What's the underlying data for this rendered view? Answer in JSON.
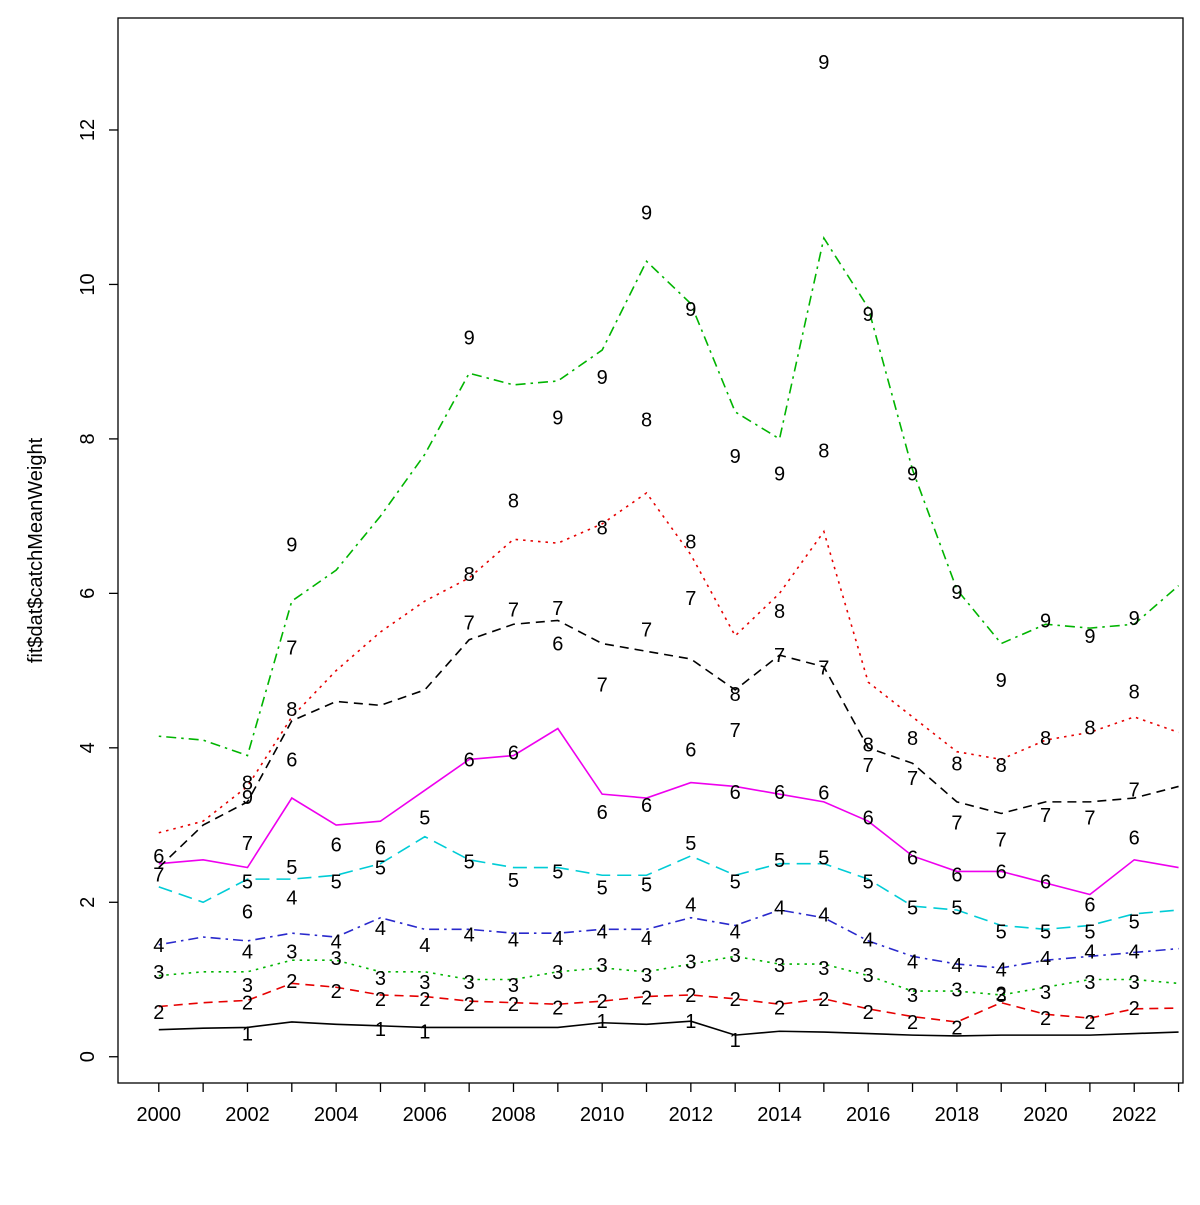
{
  "figure": {
    "background": "#ffffff"
  },
  "chart_data": {
    "type": "line",
    "title": "",
    "xlabel": "",
    "ylabel": "fit$dat$catchMeanWeight",
    "grid": false,
    "legend": "none (each series labeled by age digit plotted at observation points)",
    "xlim": [
      1999.08,
      2023.1
    ],
    "ylim": [
      -0.34,
      13.45
    ],
    "x": [
      2000,
      2001,
      2002,
      2003,
      2004,
      2005,
      2006,
      2007,
      2008,
      2009,
      2010,
      2011,
      2012,
      2013,
      2014,
      2015,
      2016,
      2017,
      2018,
      2019,
      2020,
      2021,
      2022,
      2023
    ],
    "x_tick_labels": [
      2000,
      2002,
      2004,
      2006,
      2008,
      2010,
      2012,
      2014,
      2016,
      2018,
      2020,
      2022
    ],
    "y_ticks": [
      0,
      2,
      4,
      6,
      8,
      10,
      12
    ],
    "series": [
      {
        "name": "age-1",
        "label": "1",
        "color": "#000000",
        "linetype": "solid",
        "line": [
          0.35,
          0.37,
          0.38,
          0.45,
          0.42,
          0.4,
          0.38,
          0.38,
          0.38,
          0.38,
          0.44,
          0.42,
          0.46,
          0.28,
          0.33,
          0.32,
          0.3,
          0.28,
          0.27,
          0.28,
          0.28,
          0.28,
          0.3,
          0.32
        ],
        "points": [
          null,
          null,
          0.3,
          null,
          null,
          0.36,
          0.33,
          null,
          null,
          null,
          0.46,
          null,
          0.46,
          0.22,
          null,
          null,
          null,
          null,
          null,
          null,
          null,
          null,
          null,
          null
        ]
      },
      {
        "name": "age-2",
        "label": "2",
        "color": "#e60000",
        "linetype": "dashed",
        "line": [
          0.65,
          0.7,
          0.73,
          0.95,
          0.9,
          0.8,
          0.78,
          0.72,
          0.7,
          0.68,
          0.72,
          0.78,
          0.8,
          0.75,
          0.68,
          0.75,
          0.62,
          0.52,
          0.45,
          0.7,
          0.55,
          0.5,
          0.62,
          0.63
        ],
        "points": [
          0.58,
          null,
          0.7,
          0.98,
          0.85,
          0.75,
          0.75,
          0.68,
          0.68,
          0.64,
          0.72,
          0.77,
          0.8,
          0.75,
          0.64,
          0.75,
          0.58,
          0.45,
          0.38,
          0.82,
          0.5,
          0.45,
          0.63,
          null
        ]
      },
      {
        "name": "age-3",
        "label": "3",
        "color": "#00b400",
        "linetype": "dotted",
        "line": [
          1.05,
          1.1,
          1.1,
          1.25,
          1.25,
          1.1,
          1.1,
          1.0,
          1.0,
          1.1,
          1.15,
          1.1,
          1.2,
          1.3,
          1.2,
          1.2,
          1.05,
          0.85,
          0.85,
          0.8,
          0.9,
          1.0,
          1.0,
          0.95
        ],
        "points": [
          1.1,
          null,
          0.93,
          1.36,
          1.28,
          1.02,
          0.97,
          0.97,
          0.93,
          1.1,
          1.19,
          1.06,
          1.23,
          1.32,
          1.19,
          1.15,
          1.06,
          0.8,
          0.87,
          0.8,
          0.84,
          0.97,
          0.97,
          null
        ]
      },
      {
        "name": "age-4",
        "label": "4",
        "color": "#2929cc",
        "linetype": "dashdot",
        "line": [
          1.45,
          1.55,
          1.5,
          1.6,
          1.55,
          1.8,
          1.65,
          1.65,
          1.6,
          1.6,
          1.65,
          1.65,
          1.8,
          1.7,
          1.9,
          1.8,
          1.5,
          1.3,
          1.2,
          1.15,
          1.25,
          1.3,
          1.35,
          1.4
        ],
        "points": [
          1.45,
          null,
          1.36,
          2.06,
          1.49,
          1.67,
          1.45,
          1.58,
          1.52,
          1.54,
          1.62,
          1.54,
          1.97,
          1.62,
          1.93,
          1.84,
          1.52,
          1.23,
          1.19,
          1.13,
          1.28,
          1.36,
          1.36,
          null
        ]
      },
      {
        "name": "age-5",
        "label": "5",
        "color": "#00ccd6",
        "linetype": "longdash",
        "line": [
          2.2,
          2.0,
          2.3,
          2.3,
          2.35,
          2.5,
          2.85,
          2.55,
          2.45,
          2.45,
          2.35,
          2.35,
          2.6,
          2.35,
          2.5,
          2.5,
          2.3,
          1.95,
          1.9,
          1.7,
          1.65,
          1.7,
          1.85,
          1.9
        ],
        "points": [
          null,
          null,
          2.27,
          2.46,
          2.27,
          2.45,
          3.1,
          2.53,
          2.29,
          2.4,
          2.19,
          2.23,
          2.77,
          2.27,
          2.55,
          2.58,
          2.27,
          1.93,
          1.93,
          1.62,
          1.62,
          1.62,
          1.75,
          null
        ]
      },
      {
        "name": "age-6",
        "label": "6",
        "color": "#ee00ee",
        "linetype": "solid",
        "line": [
          2.5,
          2.55,
          2.45,
          3.35,
          3.0,
          3.05,
          3.45,
          3.85,
          3.9,
          4.25,
          3.4,
          3.35,
          3.55,
          3.5,
          3.4,
          3.3,
          3.05,
          2.6,
          2.4,
          2.4,
          2.25,
          2.1,
          2.55,
          2.45
        ],
        "points": [
          2.6,
          null,
          1.88,
          3.85,
          2.75,
          2.71,
          null,
          3.85,
          3.94,
          5.35,
          3.17,
          3.26,
          3.98,
          3.43,
          3.43,
          3.42,
          3.1,
          2.58,
          2.36,
          2.4,
          2.27,
          1.97,
          2.84,
          null
        ]
      },
      {
        "name": "age-7",
        "label": "7",
        "color": "#000000",
        "linetype": "dashed",
        "line": [
          2.45,
          3.0,
          3.3,
          4.35,
          4.6,
          4.55,
          4.75,
          5.4,
          5.6,
          5.65,
          5.35,
          5.25,
          5.15,
          4.75,
          5.2,
          5.05,
          4.0,
          3.8,
          3.3,
          3.15,
          3.3,
          3.3,
          3.35,
          3.5
        ],
        "points": [
          2.36,
          null,
          2.77,
          5.3,
          null,
          null,
          null,
          5.62,
          5.79,
          5.81,
          4.82,
          5.53,
          5.94,
          4.23,
          5.2,
          5.04,
          3.78,
          3.61,
          3.03,
          2.81,
          3.13,
          3.1,
          3.46,
          null
        ]
      },
      {
        "name": "age-8",
        "label": "8",
        "color": "#e60000",
        "linetype": "dotted",
        "line": [
          2.9,
          3.05,
          3.5,
          4.4,
          5.0,
          5.5,
          5.9,
          6.2,
          6.7,
          6.65,
          6.9,
          7.3,
          6.5,
          5.45,
          6.0,
          6.8,
          4.85,
          4.4,
          3.95,
          3.85,
          4.1,
          4.2,
          4.4,
          4.2
        ],
        "points": [
          null,
          null,
          3.55,
          4.5,
          null,
          null,
          null,
          6.25,
          7.2,
          null,
          6.85,
          8.25,
          6.67,
          4.7,
          5.77,
          7.85,
          4.04,
          4.13,
          3.8,
          3.78,
          4.13,
          4.26,
          4.73,
          null
        ]
      },
      {
        "name": "age-9",
        "label": "9",
        "color": "#00b400",
        "linetype": "dashdot",
        "line": [
          4.15,
          4.1,
          3.9,
          5.9,
          6.3,
          7.0,
          7.8,
          8.85,
          8.7,
          8.75,
          9.15,
          10.3,
          9.75,
          8.35,
          8.0,
          10.6,
          9.7,
          7.6,
          6.05,
          5.35,
          5.6,
          5.55,
          5.6,
          6.1
        ],
        "points": [
          null,
          null,
          3.36,
          6.63,
          null,
          null,
          null,
          9.31,
          null,
          8.28,
          8.8,
          10.93,
          9.68,
          7.78,
          7.55,
          12.88,
          9.62,
          7.55,
          6.02,
          4.88,
          5.65,
          5.45,
          5.68,
          null
        ]
      }
    ]
  }
}
